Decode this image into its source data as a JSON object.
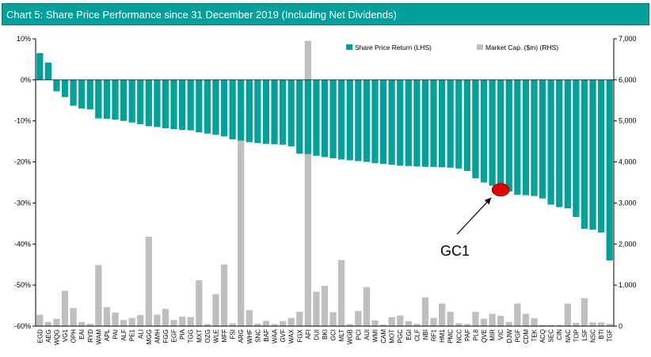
{
  "chart_data": {
    "type": "bar",
    "title": "Chart 5: Share Price Performance since 31 December 2019 (Including Net Dividends)",
    "categories": [
      "EGD",
      "AEG",
      "WQG",
      "VG1",
      "OPH",
      "EAI",
      "RYD",
      "WAM",
      "APL",
      "PAI",
      "ALF",
      "PE1",
      "ALI",
      "MGG",
      "AMH",
      "FGG",
      "EGF",
      "PIA",
      "TGG",
      "MXT",
      "OZG",
      "WLE",
      "MFF",
      "FSI",
      "ARG",
      "WHF",
      "SNC",
      "BAF",
      "WAA",
      "GVF",
      "WAX",
      "FGX",
      "AFI",
      "DUI",
      "BKI",
      "GCI",
      "MLT",
      "WGB",
      "PCI",
      "AUI",
      "WMI",
      "CAM",
      "MOT",
      "PGC",
      "EGI",
      "CLF",
      "NBI",
      "RF1",
      "HM1",
      "PMC",
      "NCC",
      "PAF",
      "PL8",
      "QVE",
      "MIR",
      "VIC",
      "DJW",
      "PGF",
      "CDM",
      "TEK",
      "ACQ",
      "SEC",
      "CIN",
      "NAC",
      "TOP",
      "LSF",
      "NSC",
      "BTI",
      "TGF"
    ],
    "series": [
      {
        "name": "Share Price Return (LHS)",
        "axis": "left",
        "color": "#00A19A",
        "values": [
          6.5,
          4.2,
          -2.8,
          -4.2,
          -6.3,
          -7.0,
          -7.2,
          -9.4,
          -9.5,
          -9.7,
          -10.0,
          -10.4,
          -10.8,
          -11.3,
          -11.5,
          -11.8,
          -12.0,
          -12.2,
          -12.3,
          -12.8,
          -13.1,
          -13.4,
          -13.8,
          -14.5,
          -14.8,
          -15.2,
          -15.4,
          -15.6,
          -15.7,
          -15.8,
          -16.2,
          -18.0,
          -18.1,
          -18.5,
          -18.8,
          -19.1,
          -19.4,
          -19.6,
          -19.8,
          -20.0,
          -20.3,
          -20.5,
          -20.7,
          -20.9,
          -21.0,
          -21.1,
          -21.2,
          -21.2,
          -21.3,
          -21.4,
          -21.6,
          -22.2,
          -24.0,
          -25.0,
          -25.8,
          -26.6,
          -27.2,
          -28.0,
          -28.1,
          -28.3,
          -28.9,
          -30.4,
          -31.0,
          -31.3,
          -33.4,
          -36.3,
          -36.5,
          -37.2,
          -44.0
        ]
      },
      {
        "name": "Market Cap. ($m) (RHS)",
        "axis": "right",
        "color": "#BFBFBF",
        "values": [
          280,
          100,
          180,
          860,
          440,
          100,
          60,
          1490,
          460,
          330,
          150,
          200,
          270,
          2180,
          280,
          420,
          150,
          230,
          220,
          1120,
          50,
          780,
          1500,
          70,
          5200,
          390,
          60,
          130,
          50,
          120,
          200,
          350,
          6950,
          840,
          980,
          340,
          1610,
          50,
          370,
          950,
          140,
          40,
          220,
          260,
          120,
          60,
          700,
          200,
          550,
          350,
          70,
          50,
          350,
          180,
          300,
          250,
          100,
          550,
          300,
          190,
          30,
          30,
          30,
          550,
          80,
          680,
          90,
          90,
          60
        ]
      }
    ],
    "ylim_left": [
      -60,
      10
    ],
    "ylim_right": [
      0,
      7000
    ],
    "yticks_left": [
      "10%",
      "0%",
      "-10%",
      "-20%",
      "-30%",
      "-40%",
      "-50%",
      "-60%"
    ],
    "yticks_right": [
      "7,000",
      "6,000",
      "5,000",
      "4,000",
      "3,000",
      "2,000",
      "1,000",
      "0"
    ],
    "legend_position": "top-right",
    "annotation": {
      "label": "GC1",
      "target_category": "VIC",
      "marker_color": "#E10000"
    },
    "grid": false
  }
}
